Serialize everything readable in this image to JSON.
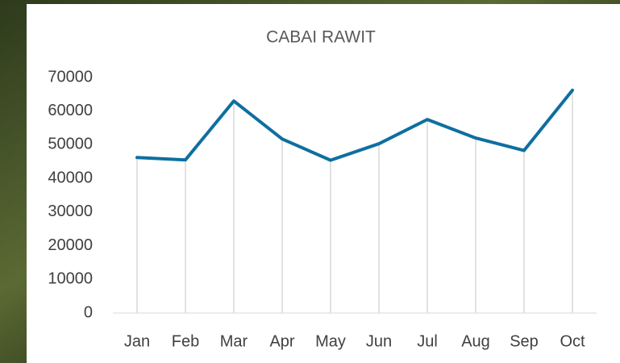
{
  "chart_data": {
    "type": "line",
    "title": "CABAI RAWIT",
    "categories": [
      "Jan",
      "Feb",
      "Mar",
      "Apr",
      "May",
      "Jun",
      "Jul",
      "Aug",
      "Sep",
      "Oct"
    ],
    "series": [
      {
        "name": "CABAI RAWIT",
        "color": "#0e6fa0",
        "values": [
          46200,
          45500,
          63000,
          51700,
          45400,
          50300,
          57500,
          52000,
          48300,
          66200
        ]
      }
    ],
    "ylim": [
      0,
      70000
    ],
    "yticks": [
      0,
      10000,
      20000,
      30000,
      40000,
      50000,
      60000,
      70000
    ],
    "drop_lines": true
  }
}
